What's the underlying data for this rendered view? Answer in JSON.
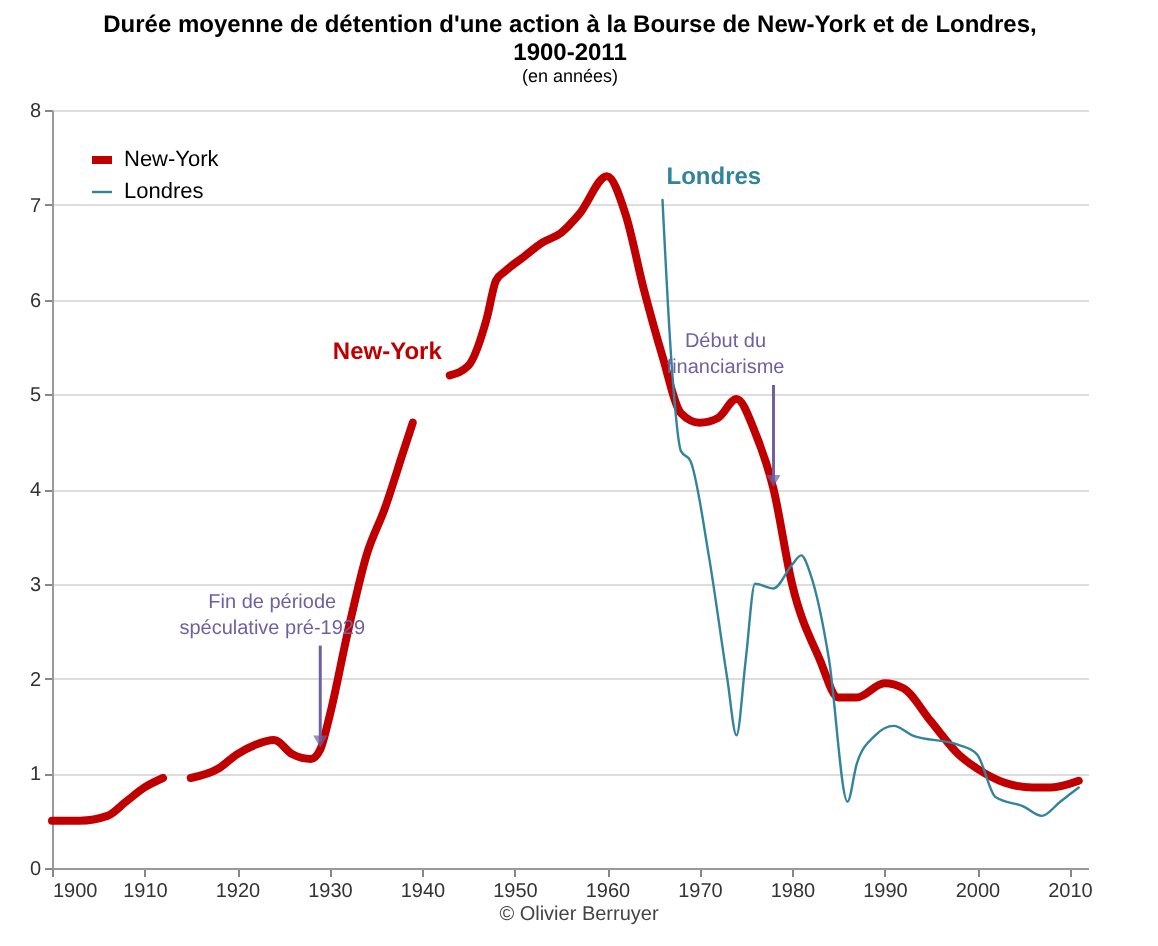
{
  "chart_data": {
    "type": "line",
    "title": "Durée moyenne de détention d'une action à la Bourse de New-York et de Londres, 1900-2011",
    "subtitle": "(en années)",
    "xlim": [
      1900,
      2012
    ],
    "xticks": [
      1900,
      1910,
      1920,
      1930,
      1940,
      1950,
      1960,
      1970,
      1980,
      1990,
      2000,
      2010
    ],
    "ylim": [
      0,
      8
    ],
    "yticks": [
      0,
      1,
      2,
      3,
      4,
      5,
      6,
      7,
      8
    ],
    "grid": "y",
    "legend": "top left",
    "marker": "none",
    "line_style": "solid",
    "series": [
      {
        "name": "New-York",
        "color": "#c00000",
        "x": [
          1900,
          1903,
          1906,
          1908,
          1910,
          1912,
          1913,
          1915,
          1918,
          1920,
          1922,
          1924,
          1926,
          1928,
          1929,
          1930,
          1932,
          1934,
          1936,
          1938,
          1939,
          1941,
          1943,
          1945,
          1947,
          1948,
          1949,
          1951,
          1953,
          1955,
          1957,
          1960,
          1962,
          1964,
          1966,
          1968,
          1970,
          1972,
          1974,
          1976,
          1978,
          1980,
          1983,
          1985,
          1987,
          1990,
          1992,
          1995,
          1998,
          2000,
          2003,
          2006,
          2008,
          2011
        ],
        "values": [
          0.5,
          0.5,
          0.55,
          0.7,
          0.85,
          0.95,
          null,
          0.95,
          1.05,
          1.2,
          1.3,
          1.35,
          1.2,
          1.15,
          1.25,
          1.6,
          2.5,
          3.3,
          3.8,
          4.4,
          4.7,
          null,
          5.2,
          5.3,
          5.8,
          6.2,
          6.3,
          6.45,
          6.6,
          6.7,
          6.9,
          7.3,
          6.9,
          6.1,
          5.4,
          4.8,
          4.7,
          4.75,
          4.95,
          4.6,
          4.0,
          3.0,
          2.2,
          1.8,
          1.8,
          1.95,
          1.9,
          1.55,
          1.2,
          1.05,
          0.9,
          0.85,
          0.85,
          0.92
        ]
      },
      {
        "name": "Londres",
        "color": "#31849b",
        "x": [
          1966,
          1967,
          1968,
          1969,
          1971,
          1973,
          1974,
          1975,
          1976,
          1978,
          1980,
          1981,
          1982,
          1984,
          1986,
          1987,
          1989,
          1991,
          1993,
          1998,
          2000,
          2002,
          2005,
          2007,
          2009,
          2011
        ],
        "values": [
          7.05,
          5.3,
          4.4,
          4.3,
          3.3,
          2.0,
          1.4,
          2.2,
          3.0,
          2.95,
          3.2,
          3.3,
          3.1,
          2.2,
          0.7,
          1.1,
          1.4,
          1.5,
          1.4,
          1.3,
          1.2,
          0.75,
          0.65,
          0.55,
          0.7,
          0.85
        ]
      }
    ],
    "annotations": [
      {
        "text": "New-York",
        "x": 1943,
        "y": 5.2
      },
      {
        "text": "Londres",
        "x": 1966,
        "y": 7.05
      },
      {
        "text": "Fin de période spéculative pré-1929",
        "x": 1929,
        "y": 1.25
      },
      {
        "text": "Début du financiarisme",
        "x": 1978,
        "y": 4.0
      },
      "© Olivier Berruyer"
    ]
  }
}
